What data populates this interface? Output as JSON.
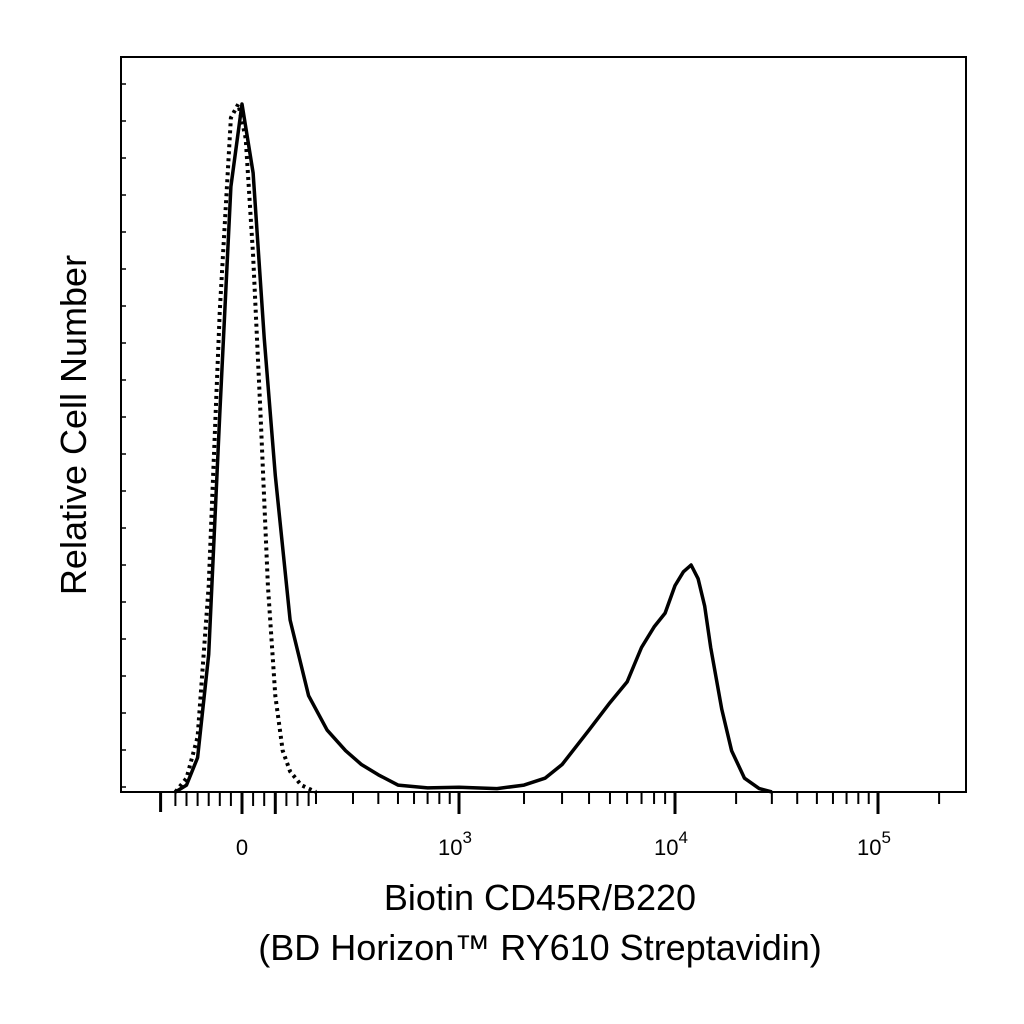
{
  "chart_data": {
    "type": "line",
    "title": "",
    "ylabel": "Relative Cell Number",
    "xlabel_lines": [
      "Biotin CD45R/B220",
      "(BD Horizon™ RY610 Streptavidin)"
    ],
    "x_scale": "biexponential",
    "x_tick_labels": [
      {
        "value": 0,
        "base": "0",
        "exp": ""
      },
      {
        "value": 1000,
        "base": "10",
        "exp": "3"
      },
      {
        "value": 10000,
        "base": "10",
        "exp": "4"
      },
      {
        "value": 100000,
        "base": "10",
        "exp": "5"
      }
    ],
    "y_tick_labels": [],
    "ylim": [
      0,
      1
    ],
    "grid": false,
    "legend": "none",
    "series": [
      {
        "style": "solid",
        "points": [
          [
            -180,
            0.0
          ],
          [
            -150,
            0.01
          ],
          [
            -120,
            0.05
          ],
          [
            -90,
            0.2
          ],
          [
            -60,
            0.55
          ],
          [
            -30,
            0.88
          ],
          [
            0,
            1.0
          ],
          [
            30,
            0.9
          ],
          [
            60,
            0.66
          ],
          [
            90,
            0.46
          ],
          [
            130,
            0.25
          ],
          [
            180,
            0.14
          ],
          [
            230,
            0.09
          ],
          [
            280,
            0.06
          ],
          [
            330,
            0.04
          ],
          [
            400,
            0.025
          ],
          [
            500,
            0.01
          ],
          [
            700,
            0.006
          ],
          [
            1000,
            0.007
          ],
          [
            1500,
            0.005
          ],
          [
            2000,
            0.01
          ],
          [
            2500,
            0.02
          ],
          [
            3000,
            0.04
          ],
          [
            4000,
            0.09
          ],
          [
            5000,
            0.13
          ],
          [
            6000,
            0.16
          ],
          [
            7000,
            0.21
          ],
          [
            8000,
            0.24
          ],
          [
            9000,
            0.26
          ],
          [
            10000,
            0.3
          ],
          [
            11000,
            0.32
          ],
          [
            12000,
            0.33
          ],
          [
            13000,
            0.31
          ],
          [
            14000,
            0.27
          ],
          [
            15000,
            0.21
          ],
          [
            17000,
            0.12
          ],
          [
            19000,
            0.06
          ],
          [
            22000,
            0.02
          ],
          [
            26000,
            0.005
          ],
          [
            30000,
            0.0
          ]
        ]
      },
      {
        "style": "dotted",
        "points": [
          [
            -180,
            0.0
          ],
          [
            -150,
            0.02
          ],
          [
            -120,
            0.08
          ],
          [
            -90,
            0.3
          ],
          [
            -60,
            0.7
          ],
          [
            -30,
            0.98
          ],
          [
            -10,
            1.0
          ],
          [
            10,
            0.95
          ],
          [
            30,
            0.78
          ],
          [
            50,
            0.55
          ],
          [
            70,
            0.3
          ],
          [
            90,
            0.14
          ],
          [
            110,
            0.06
          ],
          [
            130,
            0.03
          ],
          [
            160,
            0.01
          ],
          [
            200,
            0.0
          ]
        ]
      }
    ]
  }
}
